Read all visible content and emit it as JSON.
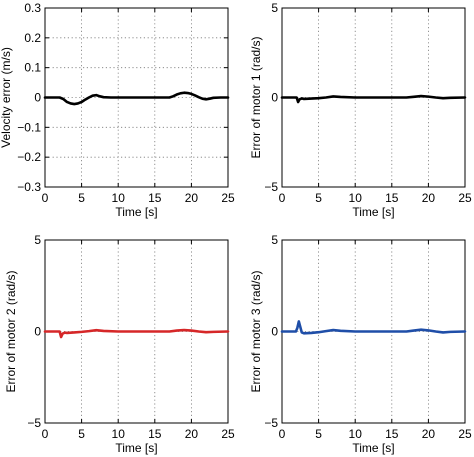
{
  "chart_data": [
    {
      "type": "line",
      "xlabel": "Time [s]",
      "ylabel": "Velocity error  (m/s)",
      "xlim": [
        0,
        25
      ],
      "ylim": [
        -0.3,
        0.3
      ],
      "xticks": [
        0,
        5,
        10,
        15,
        20,
        25
      ],
      "yticks": [
        -0.3,
        -0.2,
        -0.1,
        0,
        0.1,
        0.2,
        0.3
      ],
      "ytick_labels": [
        "−0.3",
        "−0.2",
        "−0.1",
        "0",
        "0.1",
        "0.2",
        "0.3"
      ],
      "grid": true,
      "color": "#000000",
      "series": [
        {
          "x": [
            0,
            2,
            2.5,
            3,
            3.5,
            4,
            4.5,
            5,
            5.5,
            6,
            6.5,
            7,
            7.5,
            8,
            9,
            10,
            12,
            15,
            17,
            17.5,
            18,
            18.5,
            19,
            19.5,
            20,
            20.5,
            21,
            21.5,
            22,
            22.5,
            23,
            24,
            25
          ],
          "y": [
            0,
            0,
            -0.005,
            -0.015,
            -0.02,
            -0.022,
            -0.02,
            -0.015,
            -0.007,
            0,
            0.006,
            0.008,
            0.004,
            0.001,
            0,
            0,
            0,
            0,
            0,
            0.004,
            0.01,
            0.014,
            0.016,
            0.015,
            0.012,
            0.007,
            0.001,
            -0.004,
            -0.006,
            -0.004,
            -0.001,
            0,
            0
          ]
        }
      ]
    },
    {
      "type": "line",
      "xlabel": "Time [s]",
      "ylabel": "Error of motor 1  (rad/s)",
      "xlim": [
        0,
        25
      ],
      "ylim": [
        -5,
        5
      ],
      "xticks": [
        0,
        5,
        10,
        15,
        20,
        25
      ],
      "yticks": [
        -5,
        0,
        5
      ],
      "ytick_labels": [
        "−5",
        "0",
        "5"
      ],
      "grid": true,
      "color": "#000000",
      "series": [
        {
          "x": [
            0,
            2,
            2.2,
            2.4,
            2.7,
            3,
            4,
            5,
            6,
            7,
            8,
            10,
            15,
            17,
            18,
            19,
            20,
            21,
            22,
            23,
            25
          ],
          "y": [
            0,
            0,
            -0.25,
            -0.1,
            -0.05,
            -0.08,
            -0.06,
            -0.04,
            0,
            0.06,
            0.03,
            0,
            0,
            0,
            0.04,
            0.08,
            0.05,
            0,
            -0.04,
            -0.02,
            0
          ]
        }
      ]
    },
    {
      "type": "line",
      "xlabel": "Time [s]",
      "ylabel": "Error of motor 2  (rad/s)",
      "xlim": [
        0,
        25
      ],
      "ylim": [
        -5,
        5
      ],
      "xticks": [
        0,
        5,
        10,
        15,
        20,
        25
      ],
      "yticks": [
        -5,
        0,
        5
      ],
      "ytick_labels": [
        "−5",
        "0",
        "5"
      ],
      "grid": true,
      "color": "#d62728",
      "series": [
        {
          "x": [
            0,
            2,
            2.2,
            2.4,
            2.7,
            3,
            4,
            5,
            6,
            7,
            8,
            10,
            15,
            17,
            18,
            19,
            20,
            21,
            22,
            23,
            25
          ],
          "y": [
            0,
            0,
            -0.3,
            -0.12,
            -0.06,
            -0.08,
            -0.05,
            -0.02,
            0.02,
            0.07,
            0.03,
            0,
            0,
            0,
            0.05,
            0.08,
            0.05,
            0,
            -0.04,
            -0.02,
            0
          ]
        }
      ]
    },
    {
      "type": "line",
      "xlabel": "Time [s]",
      "ylabel": "Error of motor 3  (rad/s)",
      "xlim": [
        0,
        25
      ],
      "ylim": [
        -5,
        5
      ],
      "xticks": [
        0,
        5,
        10,
        15,
        20,
        25
      ],
      "yticks": [
        -5,
        0,
        5
      ],
      "ytick_labels": [
        "−5",
        "0",
        "5"
      ],
      "grid": true,
      "color": "#1f4ea8",
      "series": [
        {
          "x": [
            0,
            1.9,
            2.1,
            2.3,
            2.5,
            2.7,
            3,
            4,
            5,
            6,
            7,
            8,
            10,
            15,
            17,
            18,
            19,
            20,
            21,
            22,
            23,
            25
          ],
          "y": [
            0,
            0,
            0.2,
            0.55,
            0.25,
            -0.05,
            -0.1,
            -0.08,
            -0.04,
            0.02,
            0.08,
            0.04,
            0,
            0,
            0,
            0.05,
            0.1,
            0.06,
            0,
            -0.05,
            -0.02,
            0
          ]
        }
      ]
    }
  ]
}
